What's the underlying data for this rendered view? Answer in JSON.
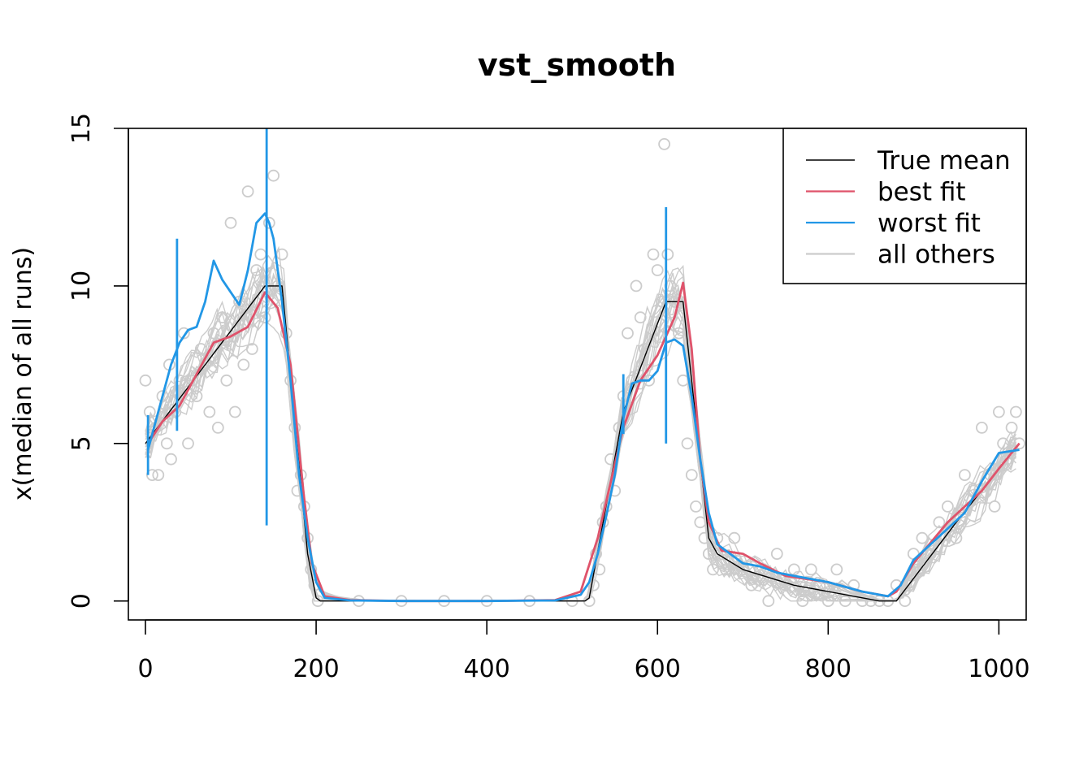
{
  "chart_data": {
    "type": "line",
    "title": "vst_smooth",
    "xlabel": "",
    "ylabel": "x(median of all runs)",
    "xlim": [
      -20,
      1032
    ],
    "ylim": [
      -0.6,
      15.0
    ],
    "xticks": [
      0,
      200,
      400,
      600,
      800,
      1000
    ],
    "yticks": [
      0,
      5,
      10,
      15
    ],
    "xtick_labels": [
      "0",
      "200",
      "400",
      "600",
      "800",
      "1000"
    ],
    "ytick_labels": [
      "0",
      "5",
      "10",
      "15"
    ],
    "grid": false,
    "legend_position": "top-right",
    "legend": [
      {
        "label": "True mean",
        "color": "#000000"
      },
      {
        "label": "best fit",
        "color": "#DF536B"
      },
      {
        "label": "worst fit",
        "color": "#2297E6"
      },
      {
        "label": "all others",
        "color": "#CCCCCC"
      }
    ],
    "series": [
      {
        "name": "True mean",
        "color": "#000000",
        "x": [
          0,
          140,
          160,
          190,
          200,
          205,
          515,
          520,
          560,
          610,
          630,
          660,
          670,
          700,
          760,
          860,
          880,
          950,
          1024
        ],
        "y": [
          5.0,
          10.0,
          10.0,
          1.5,
          0.1,
          0.0,
          0.0,
          0.1,
          6.0,
          9.5,
          9.5,
          2.0,
          1.5,
          1.0,
          0.5,
          0.0,
          0.0,
          2.5,
          5.0
        ]
      },
      {
        "name": "best fit",
        "color": "#DF536B",
        "x": [
          3,
          20,
          40,
          60,
          80,
          100,
          120,
          140,
          155,
          170,
          185,
          195,
          210,
          240,
          300,
          400,
          480,
          510,
          530,
          560,
          580,
          600,
          620,
          630,
          640,
          650,
          660,
          675,
          700,
          720,
          750,
          800,
          840,
          870,
          880,
          900,
          940,
          980,
          1000,
          1024
        ],
        "y": [
          5.0,
          5.7,
          6.2,
          7.2,
          8.2,
          8.4,
          8.7,
          9.8,
          9.3,
          7.5,
          3.5,
          1.2,
          0.15,
          0.03,
          0.0,
          0.0,
          0.03,
          0.3,
          2.0,
          5.5,
          7.0,
          7.8,
          9.0,
          10.1,
          8.0,
          4.5,
          2.5,
          1.6,
          1.5,
          1.2,
          0.8,
          0.6,
          0.3,
          0.15,
          0.3,
          1.2,
          2.5,
          3.5,
          4.2,
          5.0
        ]
      },
      {
        "name": "worst fit",
        "color": "#2297E6",
        "x": [
          3,
          10,
          20,
          30,
          40,
          50,
          60,
          70,
          80,
          90,
          100,
          110,
          120,
          130,
          140,
          145,
          150,
          160,
          170,
          180,
          190,
          200,
          210,
          240,
          300,
          400,
          480,
          510,
          520,
          530,
          540,
          550,
          560,
          570,
          580,
          590,
          600,
          610,
          620,
          630,
          640,
          650,
          660,
          670,
          700,
          720,
          740,
          760,
          800,
          840,
          870,
          885,
          900,
          920,
          940,
          960,
          980,
          1000,
          1024
        ],
        "y": [
          4.8,
          5.5,
          6.5,
          7.5,
          8.2,
          8.6,
          8.7,
          9.5,
          10.8,
          10.2,
          9.8,
          9.4,
          10.5,
          12.0,
          12.3,
          12.0,
          11.5,
          9.5,
          7.0,
          4.0,
          2.0,
          0.6,
          0.1,
          0.02,
          0.0,
          0.0,
          0.02,
          0.2,
          0.6,
          1.5,
          2.7,
          4.0,
          5.8,
          6.9,
          7.0,
          7.0,
          7.3,
          8.2,
          8.3,
          8.1,
          6.5,
          4.5,
          2.8,
          1.8,
          1.2,
          1.1,
          0.9,
          0.8,
          0.6,
          0.3,
          0.15,
          0.5,
          1.3,
          1.8,
          2.3,
          2.8,
          3.8,
          4.7,
          4.8
        ]
      }
    ],
    "worst_fit_spikes": [
      {
        "x": 3,
        "y_low": 4.0,
        "y_high": 5.9
      },
      {
        "x": 37,
        "y_low": 5.4,
        "y_high": 11.5
      },
      {
        "x": 142,
        "y_low": 2.4,
        "y_high": 15.0
      },
      {
        "x": 560,
        "y_low": 5.3,
        "y_high": 7.2
      },
      {
        "x": 610,
        "y_low": 5.0,
        "y_high": 12.5
      }
    ],
    "all_others_points": [
      [
        0,
        7.0
      ],
      [
        5,
        6.0
      ],
      [
        8,
        4.0
      ],
      [
        12,
        5.5
      ],
      [
        15,
        4.0
      ],
      [
        20,
        6.5
      ],
      [
        25,
        5.0
      ],
      [
        28,
        7.5
      ],
      [
        30,
        4.5
      ],
      [
        35,
        6.0
      ],
      [
        40,
        7.0
      ],
      [
        45,
        8.5
      ],
      [
        50,
        5.0
      ],
      [
        55,
        7.0
      ],
      [
        60,
        6.5
      ],
      [
        65,
        8.0
      ],
      [
        70,
        7.5
      ],
      [
        75,
        6.0
      ],
      [
        80,
        8.5
      ],
      [
        85,
        5.5
      ],
      [
        90,
        9.0
      ],
      [
        95,
        7.0
      ],
      [
        100,
        12.0
      ],
      [
        105,
        6.0
      ],
      [
        110,
        9.5
      ],
      [
        115,
        7.5
      ],
      [
        120,
        13.0
      ],
      [
        125,
        8.0
      ],
      [
        130,
        10.5
      ],
      [
        135,
        11.0
      ],
      [
        140,
        9.0
      ],
      [
        145,
        12.0
      ],
      [
        150,
        13.5
      ],
      [
        155,
        10.0
      ],
      [
        160,
        11.0
      ],
      [
        165,
        8.5
      ],
      [
        170,
        7.0
      ],
      [
        175,
        5.5
      ],
      [
        178,
        3.5
      ],
      [
        182,
        4.0
      ],
      [
        186,
        3.0
      ],
      [
        190,
        2.0
      ],
      [
        194,
        1.0
      ],
      [
        198,
        0.5
      ],
      [
        202,
        0.0
      ],
      [
        250,
        0.0
      ],
      [
        300,
        0.0
      ],
      [
        350,
        0.0
      ],
      [
        400,
        0.0
      ],
      [
        450,
        0.0
      ],
      [
        500,
        0.0
      ],
      [
        520,
        0.0
      ],
      [
        525,
        0.5
      ],
      [
        528,
        1.5
      ],
      [
        532,
        1.0
      ],
      [
        536,
        2.5
      ],
      [
        540,
        3.0
      ],
      [
        545,
        4.5
      ],
      [
        550,
        3.5
      ],
      [
        555,
        5.5
      ],
      [
        560,
        6.5
      ],
      [
        565,
        8.5
      ],
      [
        570,
        7.0
      ],
      [
        575,
        10.0
      ],
      [
        580,
        9.0
      ],
      [
        585,
        8.0
      ],
      [
        590,
        7.0
      ],
      [
        595,
        11.0
      ],
      [
        600,
        10.5
      ],
      [
        605,
        9.5
      ],
      [
        608,
        14.5
      ],
      [
        612,
        11.0
      ],
      [
        615,
        10.0
      ],
      [
        620,
        9.5
      ],
      [
        625,
        8.5
      ],
      [
        630,
        7.0
      ],
      [
        635,
        5.0
      ],
      [
        640,
        4.0
      ],
      [
        645,
        3.0
      ],
      [
        650,
        2.5
      ],
      [
        655,
        2.0
      ],
      [
        660,
        1.5
      ],
      [
        665,
        1.0
      ],
      [
        670,
        2.0
      ],
      [
        680,
        1.0
      ],
      [
        690,
        2.0
      ],
      [
        700,
        1.0
      ],
      [
        710,
        0.5
      ],
      [
        720,
        1.0
      ],
      [
        730,
        0.0
      ],
      [
        740,
        1.5
      ],
      [
        750,
        0.5
      ],
      [
        760,
        1.0
      ],
      [
        770,
        0.0
      ],
      [
        780,
        1.0
      ],
      [
        790,
        0.5
      ],
      [
        800,
        0.0
      ],
      [
        810,
        1.0
      ],
      [
        820,
        0.0
      ],
      [
        830,
        0.5
      ],
      [
        840,
        0.0
      ],
      [
        850,
        0.0
      ],
      [
        860,
        0.0
      ],
      [
        870,
        0.0
      ],
      [
        880,
        0.5
      ],
      [
        890,
        0.0
      ],
      [
        900,
        1.5
      ],
      [
        905,
        1.0
      ],
      [
        910,
        2.0
      ],
      [
        920,
        1.5
      ],
      [
        930,
        2.5
      ],
      [
        940,
        3.0
      ],
      [
        950,
        2.0
      ],
      [
        960,
        4.0
      ],
      [
        970,
        3.5
      ],
      [
        980,
        5.5
      ],
      [
        990,
        4.0
      ],
      [
        995,
        3.0
      ],
      [
        1000,
        6.0
      ],
      [
        1005,
        5.0
      ],
      [
        1010,
        4.5
      ],
      [
        1015,
        5.5
      ],
      [
        1020,
        6.0
      ],
      [
        1024,
        5.0
      ]
    ]
  }
}
